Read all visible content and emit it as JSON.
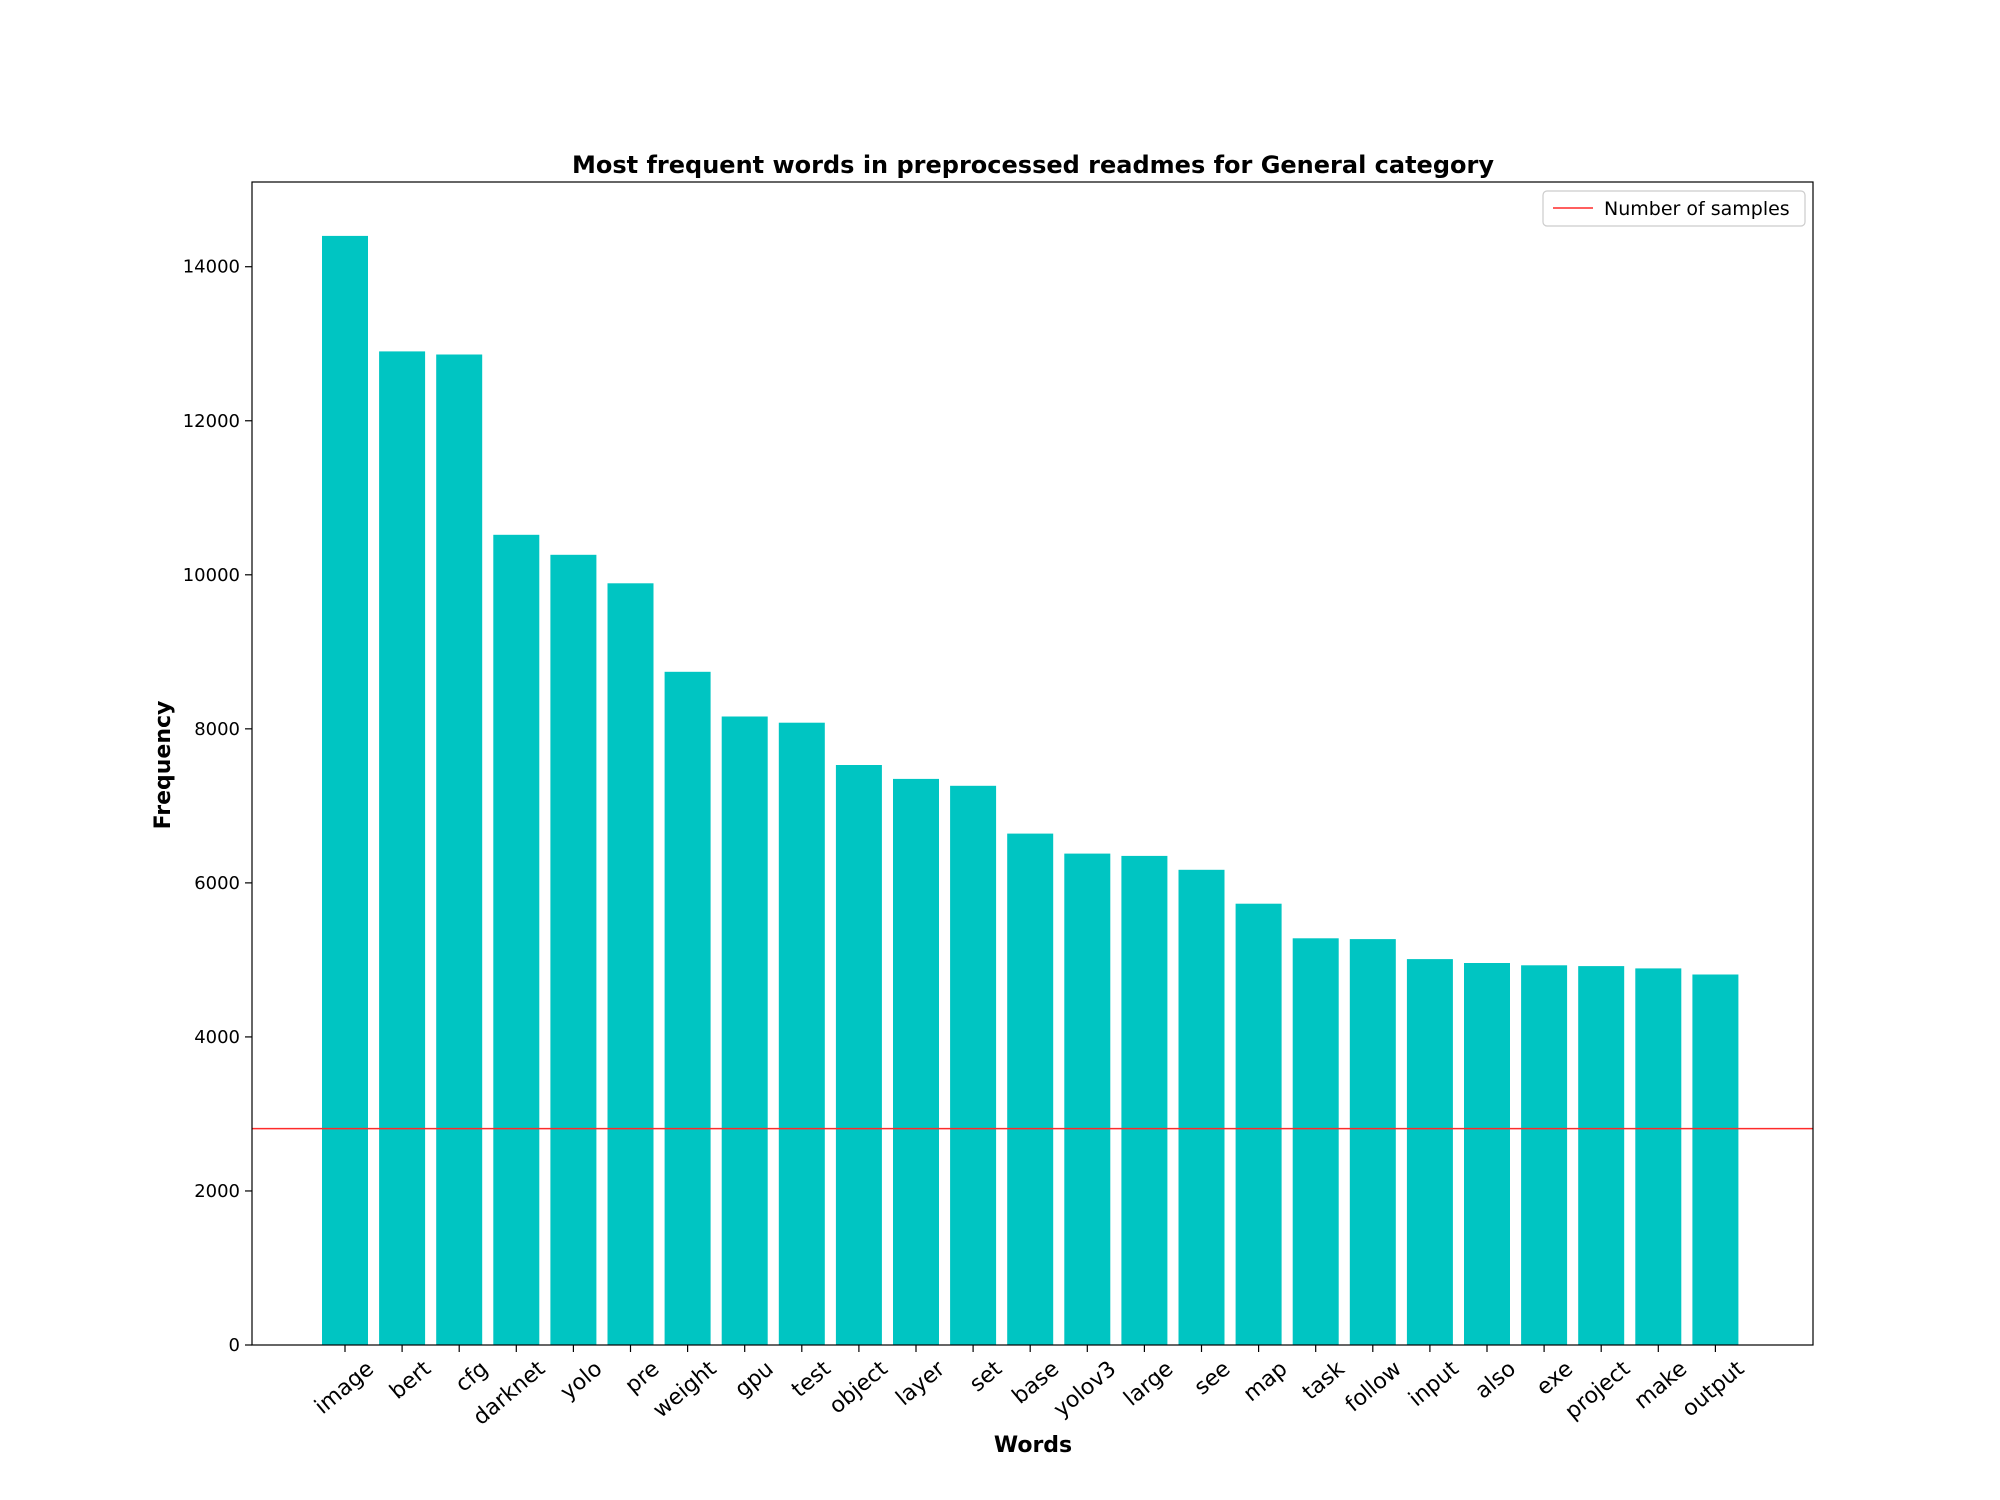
{
  "chart_data": {
    "type": "bar",
    "title": "Most frequent words in preprocessed readmes for General category",
    "xlabel": "Words",
    "ylabel": "Frequency",
    "categories": [
      "image",
      "bert",
      "cfg",
      "darknet",
      "yolo",
      "pre",
      "weight",
      "gpu",
      "test",
      "object",
      "layer",
      "set",
      "base",
      "yolov3",
      "large",
      "see",
      "map",
      "task",
      "follow",
      "input",
      "also",
      "exe",
      "project",
      "make",
      "output"
    ],
    "values": [
      14400,
      12900,
      12860,
      10520,
      10260,
      9890,
      8740,
      8160,
      8080,
      7530,
      7350,
      7260,
      6640,
      6380,
      6350,
      6170,
      5730,
      5280,
      5270,
      5010,
      4960,
      4930,
      4920,
      4890,
      4810
    ],
    "bar_color": "#00c5c2",
    "reference_line": {
      "label": "Number of samples",
      "value": 2810,
      "color": "#ff2a2a"
    },
    "legend_position": "top-right",
    "ylim": [
      0,
      15100
    ],
    "yticks": [
      0,
      2000,
      4000,
      6000,
      8000,
      10000,
      12000,
      14000
    ],
    "grid": false
  }
}
